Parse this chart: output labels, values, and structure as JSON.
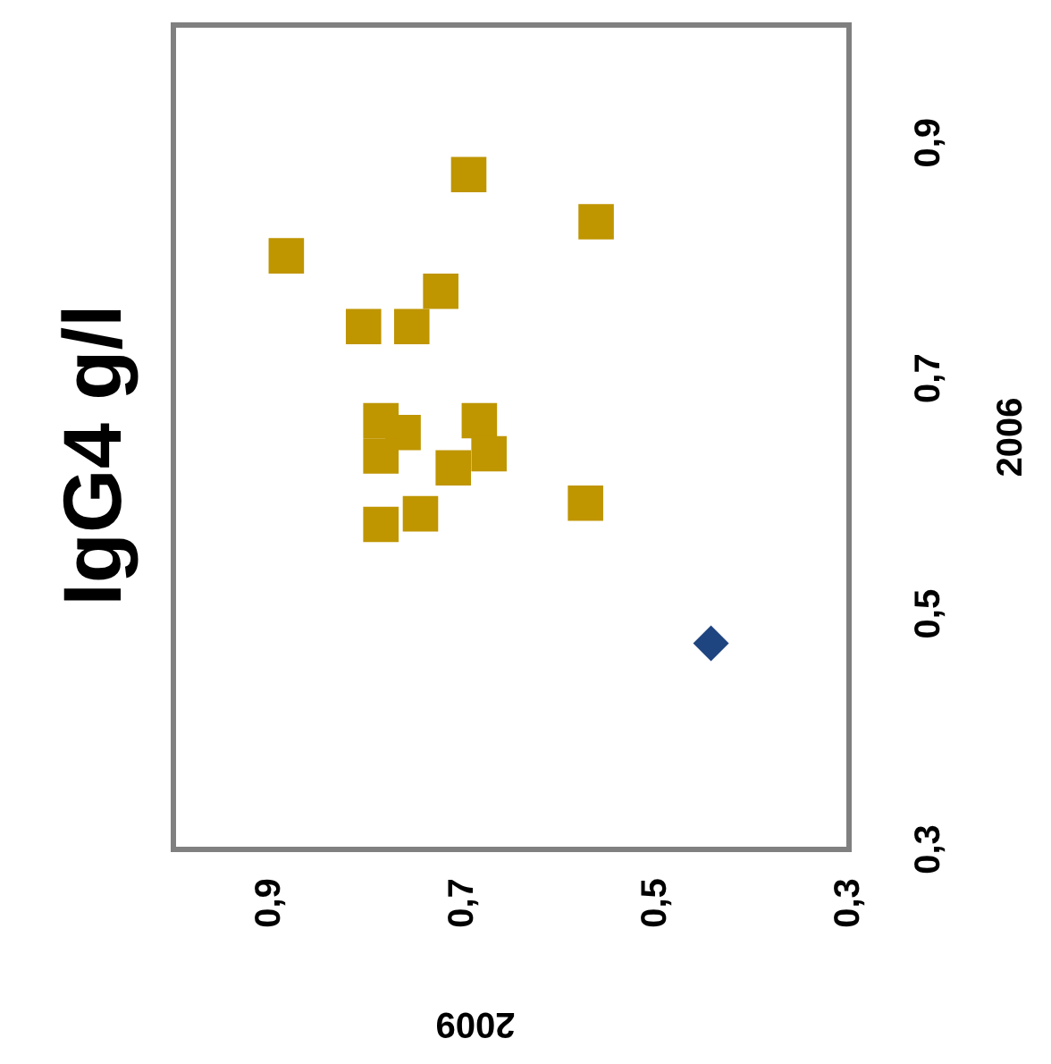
{
  "chart_data": {
    "type": "scatter",
    "title": "IgG4 g/l",
    "xlabel": "2009",
    "ylabel": "2006",
    "xlim": [
      1.0,
      0.3
    ],
    "ylim": [
      0.3,
      1.0
    ],
    "xticks": [
      {
        "value": 0.9,
        "label": "0,9"
      },
      {
        "value": 0.7,
        "label": "0,7"
      },
      {
        "value": 0.5,
        "label": "0,5"
      },
      {
        "value": 0.3,
        "label": "0,3"
      }
    ],
    "yticks": [
      {
        "value": 0.3,
        "label": "0,3"
      },
      {
        "value": 0.5,
        "label": "0,5"
      },
      {
        "value": 0.7,
        "label": "0,7"
      },
      {
        "value": 0.9,
        "label": "0,9"
      }
    ],
    "grid": false,
    "legend": false,
    "series": [
      {
        "color": "#1f4580",
        "marker": "diamond",
        "x": [
          0.443
        ],
        "values": [
          0.475
        ]
      },
      {
        "color": "#bf9500",
        "marker": "square",
        "x": [
          0.883,
          0.694,
          0.562,
          0.723,
          0.803,
          0.753,
          0.785,
          0.762,
          0.683,
          0.785,
          0.673,
          0.71,
          0.573,
          0.744,
          0.785
        ],
        "values": [
          0.804,
          0.873,
          0.833,
          0.774,
          0.744,
          0.744,
          0.664,
          0.654,
          0.664,
          0.634,
          0.636,
          0.624,
          0.594,
          0.585,
          0.576
        ]
      }
    ]
  }
}
